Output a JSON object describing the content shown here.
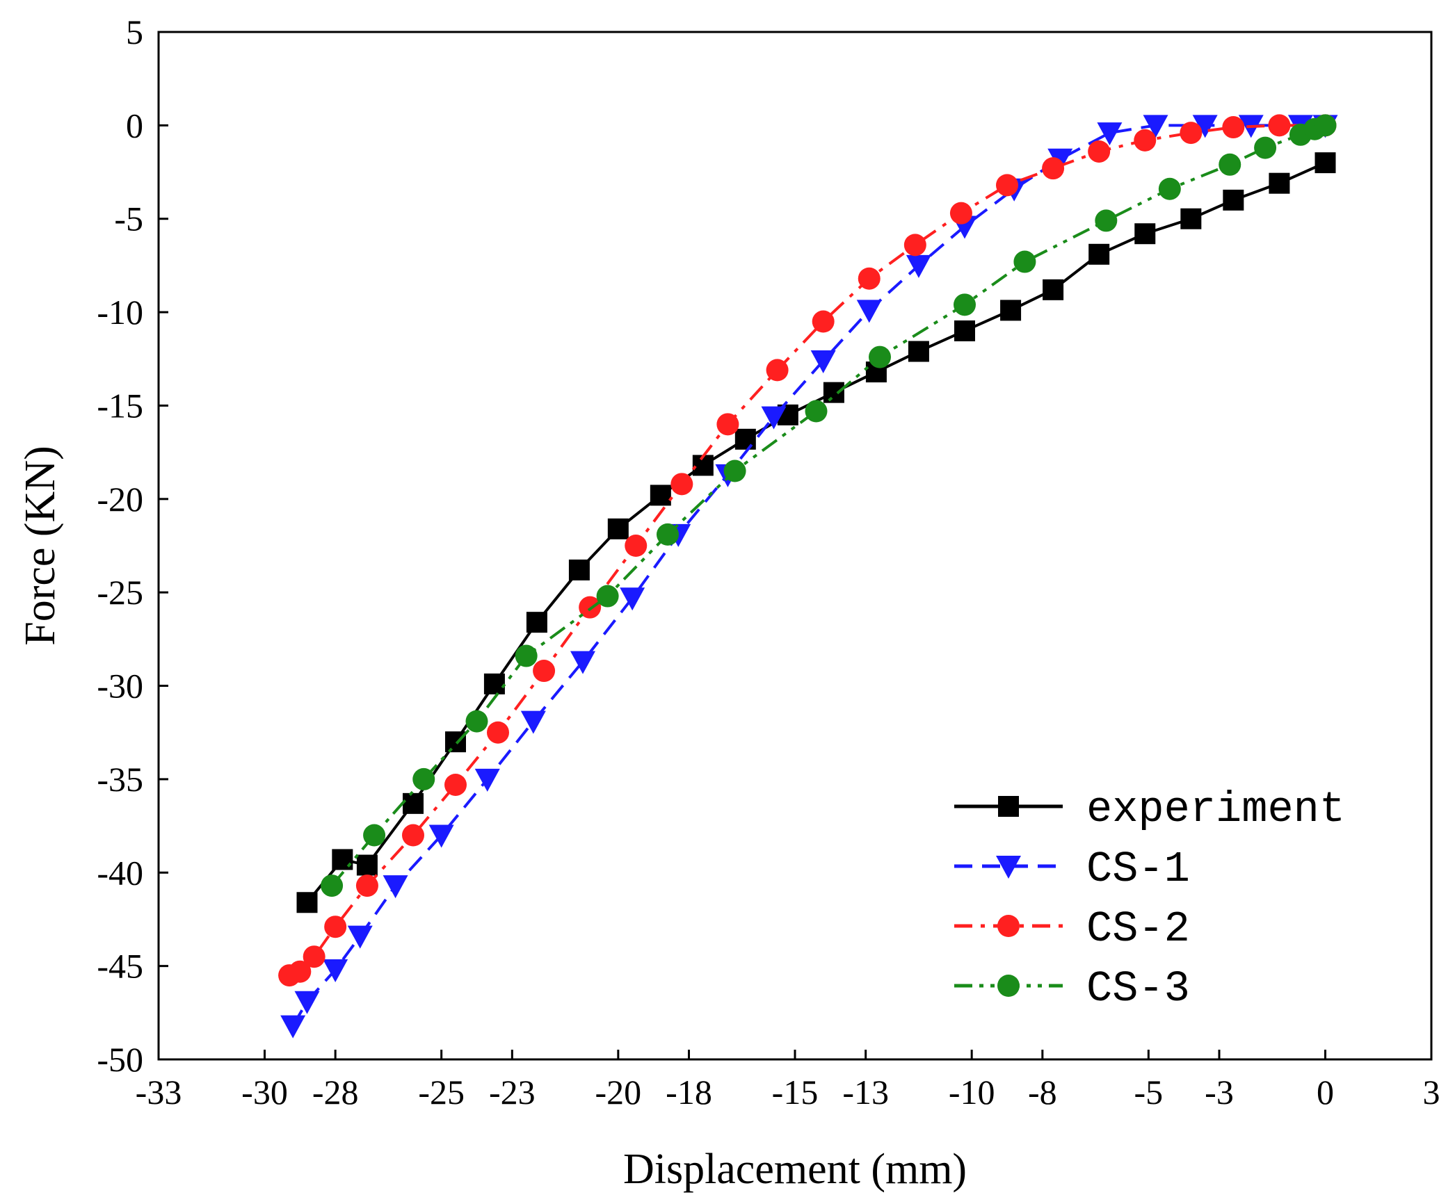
{
  "chart_data": {
    "type": "line",
    "title": "",
    "xlabel": "Displacement (mm)",
    "ylabel": "Force (KN)",
    "xlim": [
      -33,
      3
    ],
    "ylim": [
      -50,
      5
    ],
    "x_ticks": [
      -33,
      -30,
      -28,
      -25,
      -23,
      -20,
      -18,
      -15,
      -13,
      -10,
      -8,
      -5,
      -3,
      0,
      3
    ],
    "y_ticks": [
      5,
      0,
      -5,
      -10,
      -15,
      -20,
      -25,
      -30,
      -35,
      -40,
      -45,
      -50
    ],
    "grid": false,
    "legend_position": "bottom-right",
    "series": [
      {
        "name": "experiment",
        "color": "#000000",
        "marker": "square",
        "line_style": "solid",
        "x": [
          -28.8,
          -27.8,
          -27.1,
          -25.8,
          -24.6,
          -23.5,
          -22.3,
          -21.1,
          -20.0,
          -18.8,
          -17.6,
          -16.4,
          -15.2,
          -13.9,
          -12.7,
          -11.5,
          -10.2,
          -8.9,
          -7.7,
          -6.4,
          -5.1,
          -3.8,
          -2.6,
          -1.3,
          0.0
        ],
        "y": [
          -41.6,
          -39.3,
          -39.6,
          -36.3,
          -33.0,
          -29.9,
          -26.6,
          -23.8,
          -21.6,
          -19.8,
          -18.2,
          -16.8,
          -15.5,
          -14.3,
          -13.2,
          -12.1,
          -11.0,
          -9.9,
          -8.8,
          -6.9,
          -5.8,
          -5.0,
          -4.0,
          -3.1,
          -2.0
        ]
      },
      {
        "name": "CS-1",
        "color": "#1a1aff",
        "marker": "triangle-down",
        "line_style": "dashed",
        "x": [
          -29.2,
          -28.8,
          -28.0,
          -27.3,
          -26.3,
          -25.0,
          -23.7,
          -22.4,
          -21.0,
          -19.6,
          -18.3,
          -16.9,
          -15.6,
          -14.2,
          -12.9,
          -11.5,
          -10.2,
          -8.8,
          -7.5,
          -6.1,
          -4.8,
          -3.4,
          -2.1,
          -0.7,
          0.0
        ],
        "y": [
          -48.2,
          -46.9,
          -45.2,
          -43.4,
          -40.7,
          -38.0,
          -35.0,
          -31.9,
          -28.7,
          -25.3,
          -21.9,
          -18.7,
          -15.6,
          -12.6,
          -9.9,
          -7.5,
          -5.4,
          -3.4,
          -1.8,
          -0.4,
          0.0,
          0.0,
          0.0,
          0.0,
          0.0
        ]
      },
      {
        "name": "CS-2",
        "color": "#ff2020",
        "marker": "circle",
        "line_style": "dash-dot",
        "x": [
          -29.3,
          -29.0,
          -28.6,
          -28.0,
          -27.1,
          -25.8,
          -24.6,
          -23.4,
          -22.1,
          -20.8,
          -19.5,
          -18.2,
          -16.9,
          -15.5,
          -14.2,
          -12.9,
          -11.6,
          -10.3,
          -9.0,
          -7.7,
          -6.4,
          -5.1,
          -3.8,
          -2.6,
          -1.3,
          0.0
        ],
        "y": [
          -45.5,
          -45.3,
          -44.5,
          -42.9,
          -40.7,
          -38.0,
          -35.3,
          -32.5,
          -29.2,
          -25.8,
          -22.5,
          -19.2,
          -16.0,
          -13.1,
          -10.5,
          -8.2,
          -6.4,
          -4.7,
          -3.2,
          -2.3,
          -1.4,
          -0.8,
          -0.4,
          -0.1,
          0.0,
          0.0
        ]
      },
      {
        "name": "CS-3",
        "color": "#1a8c1a",
        "marker": "circle",
        "line_style": "dash-dot-dot",
        "x": [
          -28.1,
          -26.9,
          -25.5,
          -24.0,
          -22.6,
          -20.3,
          -18.6,
          -16.7,
          -14.4,
          -12.6,
          -10.2,
          -8.5,
          -6.2,
          -4.4,
          -2.7,
          -1.7,
          -0.7,
          -0.3,
          0.0
        ],
        "y": [
          -40.7,
          -38.0,
          -35.0,
          -31.9,
          -28.4,
          -25.2,
          -21.9,
          -18.5,
          -15.3,
          -12.4,
          -9.6,
          -7.3,
          -5.1,
          -3.4,
          -2.1,
          -1.2,
          -0.5,
          -0.2,
          0.0
        ]
      }
    ]
  }
}
